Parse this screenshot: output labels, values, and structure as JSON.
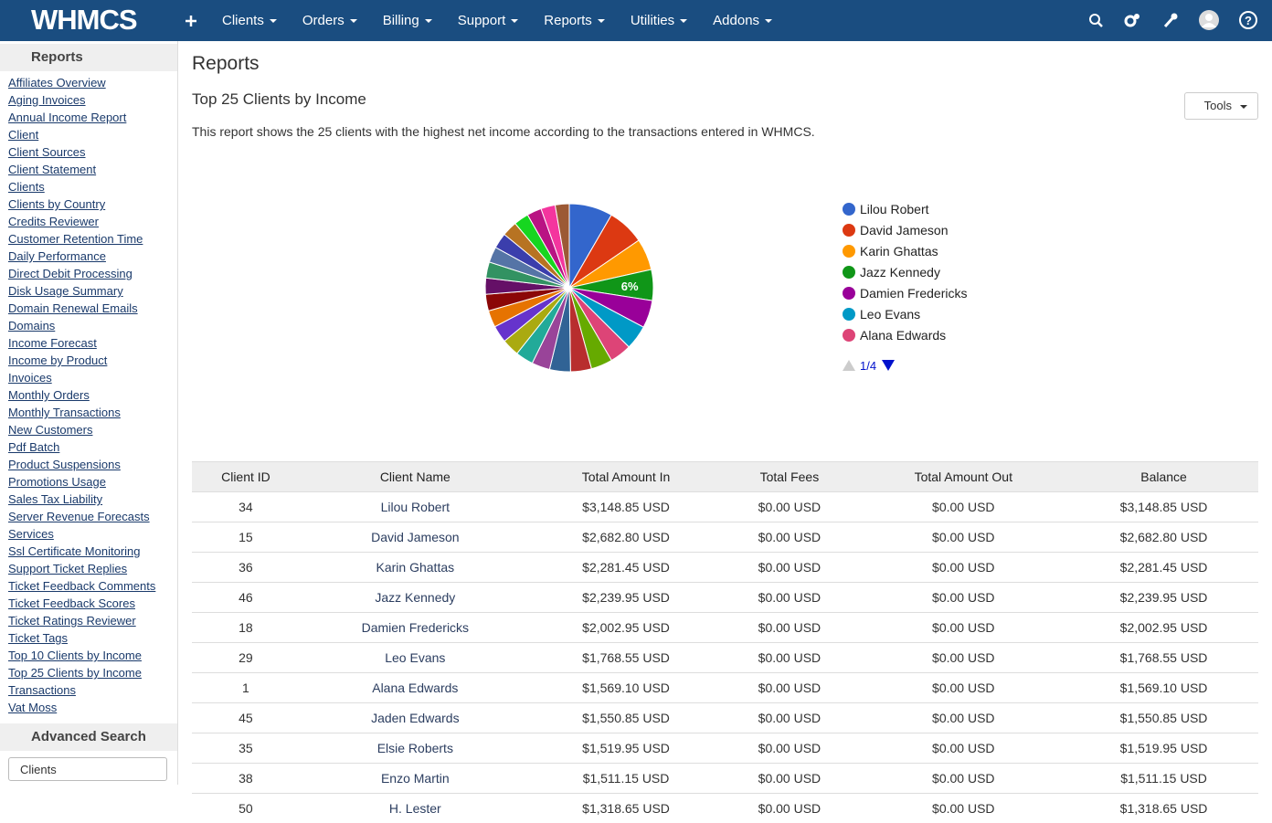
{
  "nav": {
    "logo": "WHMCS",
    "menu": [
      "Clients",
      "Orders",
      "Billing",
      "Support",
      "Reports",
      "Utilities",
      "Addons"
    ]
  },
  "sidebar": {
    "title": "Reports",
    "links": [
      "Affiliates Overview",
      "Aging Invoices",
      "Annual Income Report",
      "Client",
      "Client Sources",
      "Client Statement",
      "Clients",
      "Clients by Country",
      "Credits Reviewer",
      "Customer Retention Time",
      "Daily Performance",
      "Direct Debit Processing",
      "Disk Usage Summary",
      "Domain Renewal Emails",
      "Domains",
      "Income Forecast",
      "Income by Product",
      "Invoices",
      "Monthly Orders",
      "Monthly Transactions",
      "New Customers",
      "Pdf Batch",
      "Product Suspensions",
      "Promotions Usage",
      "Sales Tax Liability",
      "Server Revenue Forecasts",
      "Services",
      "Ssl Certificate Monitoring",
      "Support Ticket Replies",
      "Ticket Feedback Comments",
      "Ticket Feedback Scores",
      "Ticket Ratings Reviewer",
      "Ticket Tags",
      "Top 10 Clients by Income",
      "Top 25 Clients by Income",
      "Transactions",
      "Vat Moss"
    ],
    "search_title": "Advanced Search",
    "search_select": "Clients"
  },
  "page": {
    "title": "Reports",
    "report_title": "Top 25 Clients by Income",
    "tools": "Tools",
    "description": "This report shows the 25 clients with the highest net income according to the transactions entered in WHMCS."
  },
  "chart_data": {
    "type": "pie",
    "categories": [
      "Lilou Robert",
      "David Jameson",
      "Karin Ghattas",
      "Jazz Kennedy",
      "Damien Fredericks",
      "Leo Evans",
      "Alana Edwards",
      null,
      null,
      null,
      null,
      null,
      null,
      null,
      null,
      null,
      null,
      null,
      null,
      null,
      null,
      null,
      null,
      null,
      null
    ],
    "values": [
      3148.85,
      2682.8,
      2281.45,
      2239.95,
      2002.95,
      1768.55,
      1569.1,
      1550.85,
      1519.95,
      1511.15,
      1318.65,
      1290,
      1260,
      1240,
      1220,
      1200,
      1180,
      1160,
      1140,
      1120,
      1100,
      1080,
      1060,
      1040,
      1020
    ],
    "value_labels": [
      null,
      null,
      null,
      "6%",
      null,
      null,
      null,
      null,
      null,
      null,
      null,
      null,
      null,
      null,
      null,
      null,
      null,
      null,
      null,
      null,
      null,
      null,
      null,
      null,
      null
    ],
    "colors": [
      "#3366cc",
      "#dc3912",
      "#ff9900",
      "#109618",
      "#990099",
      "#0099c6",
      "#dd4477",
      "#66aa00",
      "#b82e2e",
      "#316395",
      "#994499",
      "#22aa99",
      "#aaaa11",
      "#6633cc",
      "#e67300",
      "#8b0707",
      "#651067",
      "#329262",
      "#5574a6",
      "#3b3eac",
      "#b77322",
      "#16d620",
      "#b91383",
      "#f4359e",
      "#9c5935"
    ],
    "legend": "right",
    "legend_pager": "1/4"
  },
  "table": {
    "headers": [
      "Client ID",
      "Client Name",
      "Total Amount In",
      "Total Fees",
      "Total Amount Out",
      "Balance"
    ],
    "rows": [
      [
        "34",
        "Lilou Robert",
        "$3,148.85 USD",
        "$0.00 USD",
        "$0.00 USD",
        "$3,148.85 USD"
      ],
      [
        "15",
        "David Jameson",
        "$2,682.80 USD",
        "$0.00 USD",
        "$0.00 USD",
        "$2,682.80 USD"
      ],
      [
        "36",
        "Karin Ghattas",
        "$2,281.45 USD",
        "$0.00 USD",
        "$0.00 USD",
        "$2,281.45 USD"
      ],
      [
        "46",
        "Jazz Kennedy",
        "$2,239.95 USD",
        "$0.00 USD",
        "$0.00 USD",
        "$2,239.95 USD"
      ],
      [
        "18",
        "Damien Fredericks",
        "$2,002.95 USD",
        "$0.00 USD",
        "$0.00 USD",
        "$2,002.95 USD"
      ],
      [
        "29",
        "Leo Evans",
        "$1,768.55 USD",
        "$0.00 USD",
        "$0.00 USD",
        "$1,768.55 USD"
      ],
      [
        "1",
        "Alana Edwards",
        "$1,569.10 USD",
        "$0.00 USD",
        "$0.00 USD",
        "$1,569.10 USD"
      ],
      [
        "45",
        "Jaden Edwards",
        "$1,550.85 USD",
        "$0.00 USD",
        "$0.00 USD",
        "$1,550.85 USD"
      ],
      [
        "35",
        "Elsie Roberts",
        "$1,519.95 USD",
        "$0.00 USD",
        "$0.00 USD",
        "$1,519.95 USD"
      ],
      [
        "38",
        "Enzo Martin",
        "$1,511.15 USD",
        "$0.00 USD",
        "$0.00 USD",
        "$1,511.15 USD"
      ],
      [
        "50",
        "H. Lester",
        "$1,318.65 USD",
        "$0.00 USD",
        "$0.00 USD",
        "$1,318.65 USD"
      ]
    ]
  }
}
